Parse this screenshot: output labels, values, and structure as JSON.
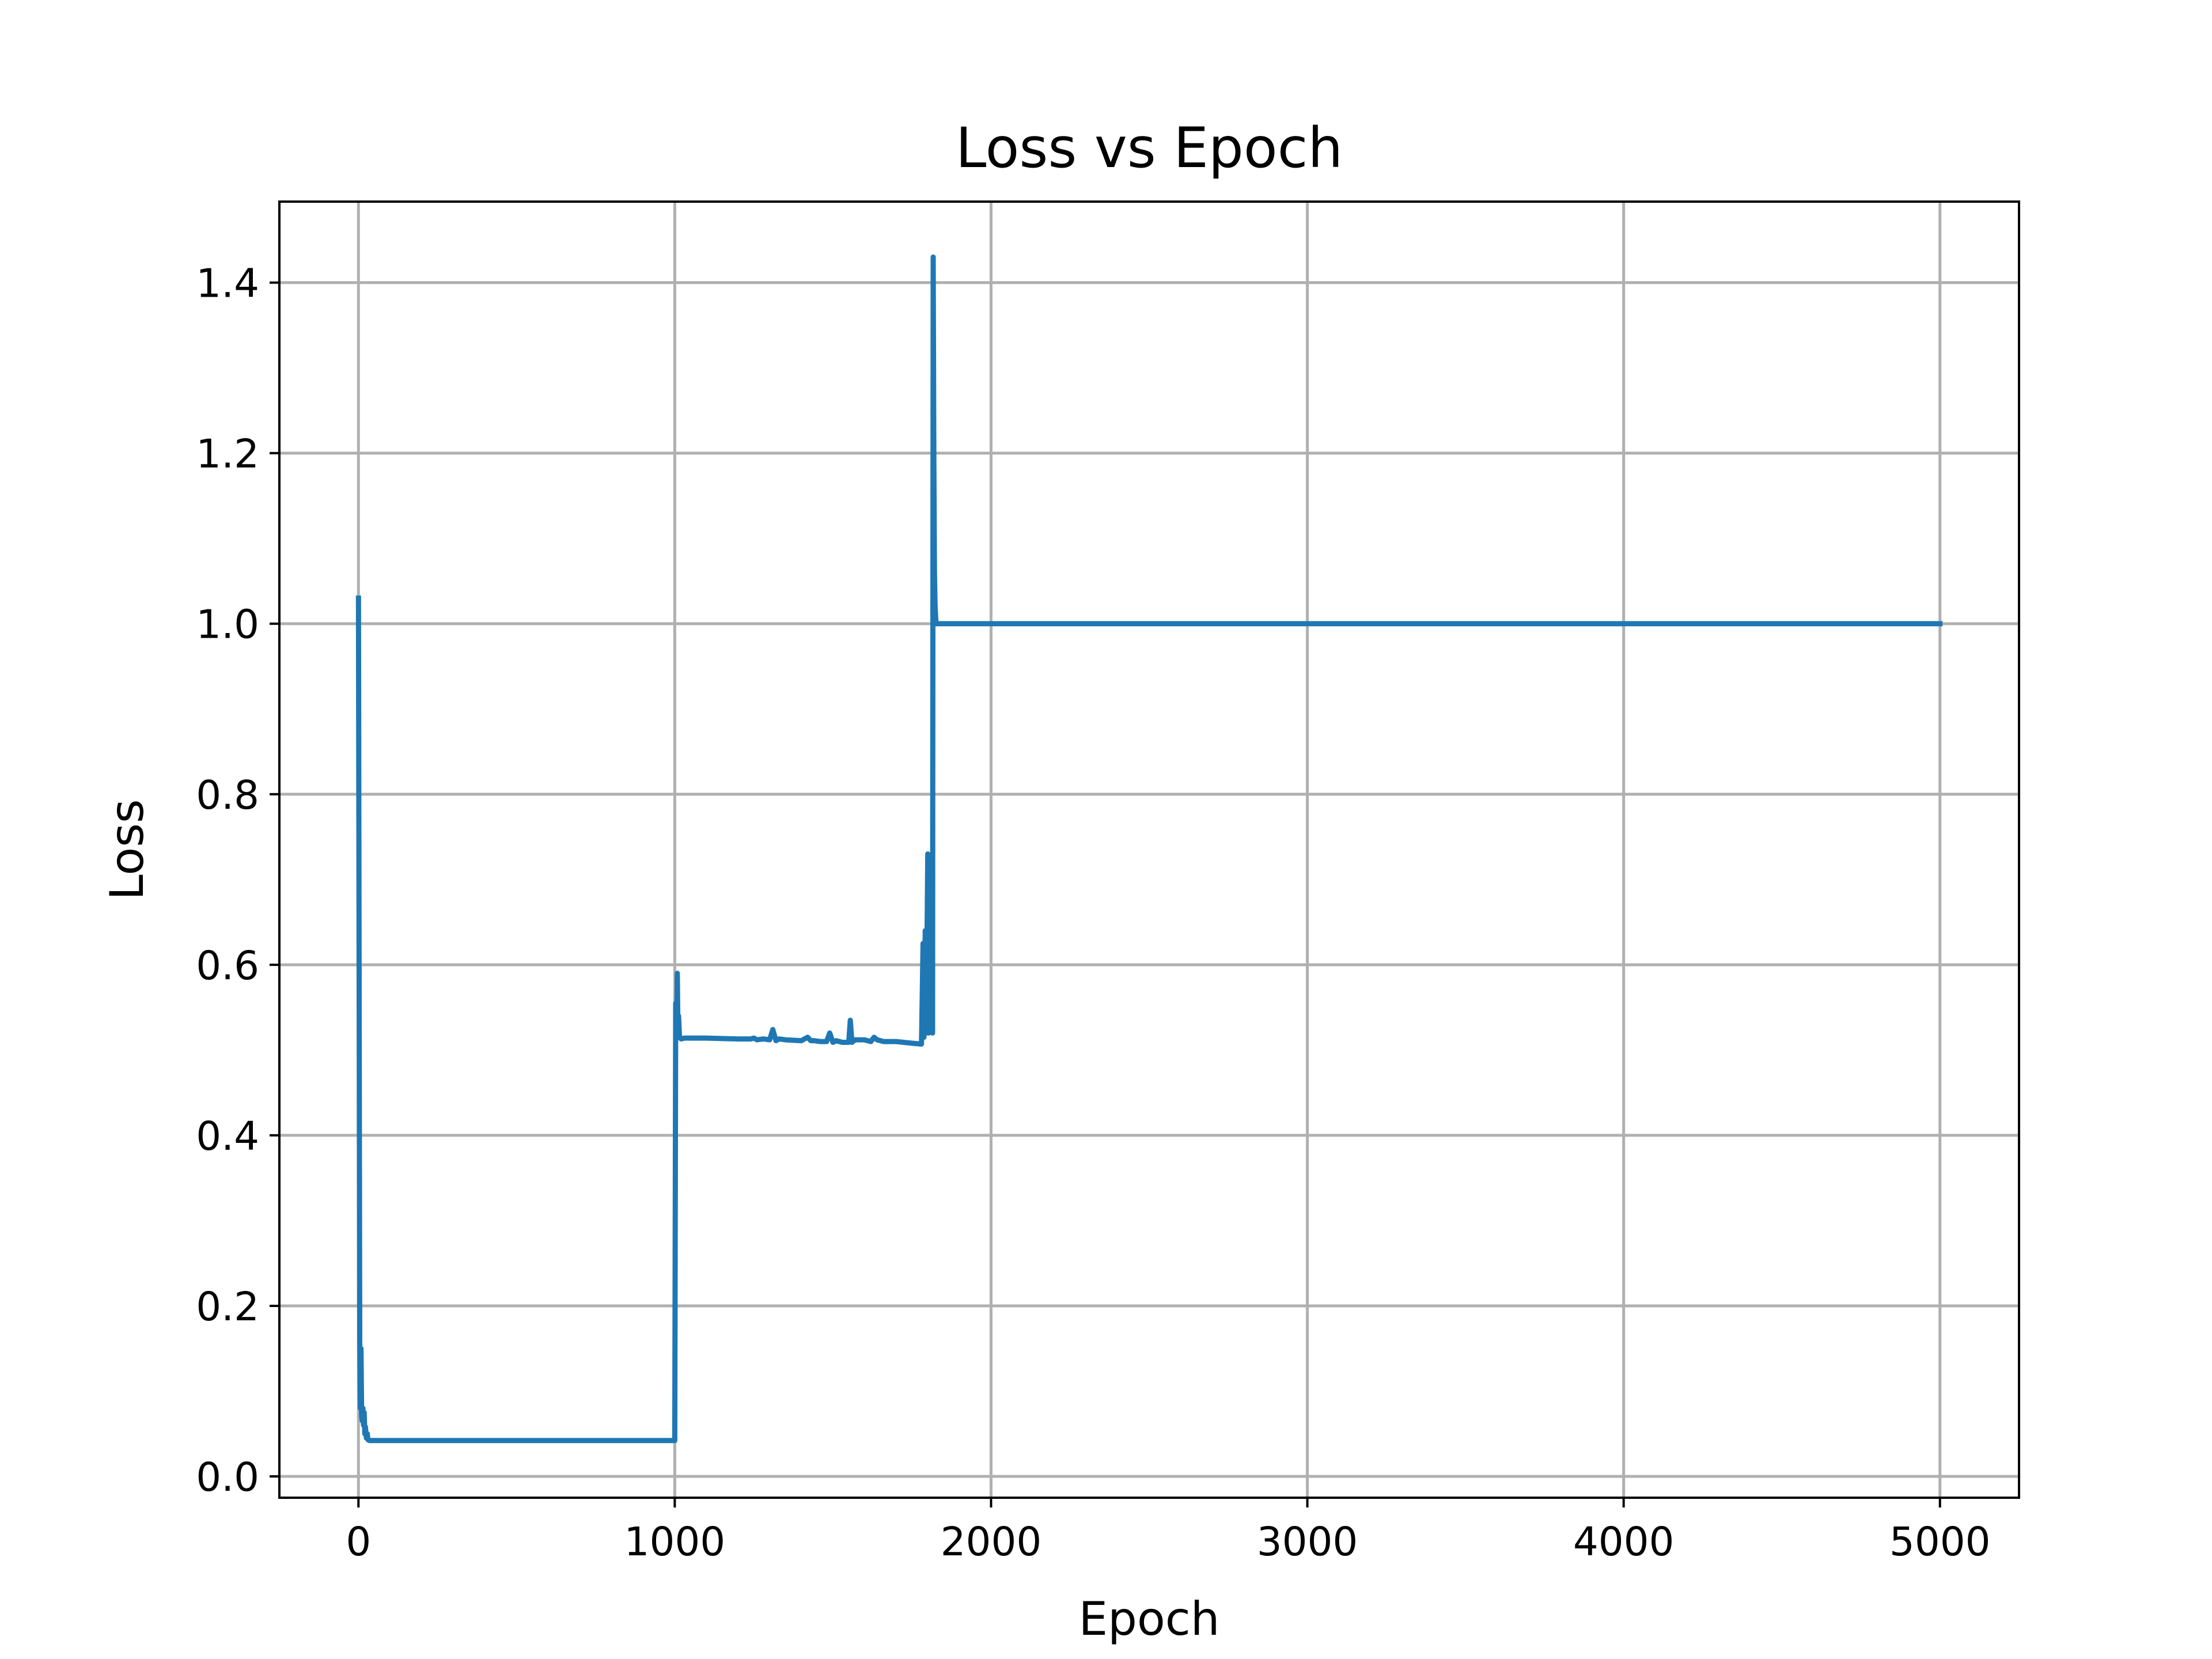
{
  "chart_data": {
    "type": "line",
    "title": "Loss vs Epoch",
    "xlabel": "Epoch",
    "ylabel": "Loss",
    "xlim": [
      -250,
      5250
    ],
    "ylim": [
      -0.025,
      1.495
    ],
    "xticks": [
      0,
      1000,
      2000,
      3000,
      4000,
      5000
    ],
    "xtick_labels": [
      "0",
      "1000",
      "2000",
      "3000",
      "4000",
      "5000"
    ],
    "yticks": [
      0.0,
      0.2,
      0.4,
      0.6,
      0.8,
      1.0,
      1.2,
      1.4
    ],
    "ytick_labels": [
      "0.0",
      "0.2",
      "0.4",
      "0.6",
      "0.8",
      "1.0",
      "1.2",
      "1.4"
    ],
    "grid": true,
    "colors": {
      "series": "#1f77b4",
      "grid": "#b0b0b0",
      "axes": "#000000"
    },
    "series": [
      {
        "x": [
          0,
          2,
          4,
          6,
          8,
          10,
          12,
          14,
          16,
          18,
          20,
          22,
          25,
          28,
          30,
          35,
          40,
          50,
          60,
          100,
          200,
          400,
          600,
          800,
          998,
          1000,
          1003,
          1006,
          1008,
          1010,
          1012,
          1015,
          1020,
          1030,
          1050,
          1100,
          1200,
          1240,
          1250,
          1260,
          1280,
          1300,
          1310,
          1320,
          1330,
          1350,
          1400,
          1420,
          1430,
          1440,
          1460,
          1480,
          1490,
          1500,
          1510,
          1530,
          1550,
          1555,
          1560,
          1570,
          1600,
          1620,
          1630,
          1640,
          1660,
          1700,
          1750,
          1780,
          1785,
          1788,
          1792,
          1795,
          1800,
          1803,
          1806,
          1809,
          1811,
          1813,
          1815,
          1817,
          1819,
          1821,
          1823,
          1826,
          1830,
          1840,
          1900,
          2000,
          3000,
          4000,
          5000
        ],
        "y": [
          1.03,
          0.6,
          0.16,
          0.08,
          0.15,
          0.07,
          0.065,
          0.08,
          0.06,
          0.075,
          0.05,
          0.058,
          0.045,
          0.05,
          0.043,
          0.042,
          0.042,
          0.042,
          0.042,
          0.042,
          0.042,
          0.042,
          0.042,
          0.042,
          0.042,
          0.042,
          0.555,
          0.52,
          0.59,
          0.52,
          0.54,
          0.515,
          0.513,
          0.514,
          0.514,
          0.514,
          0.513,
          0.513,
          0.514,
          0.512,
          0.513,
          0.512,
          0.524,
          0.511,
          0.513,
          0.512,
          0.511,
          0.515,
          0.511,
          0.511,
          0.51,
          0.51,
          0.52,
          0.509,
          0.511,
          0.509,
          0.509,
          0.535,
          0.509,
          0.512,
          0.512,
          0.51,
          0.515,
          0.512,
          0.51,
          0.51,
          0.508,
          0.507,
          0.625,
          0.515,
          0.64,
          0.52,
          0.73,
          0.52,
          0.6,
          0.525,
          0.62,
          0.53,
          0.52,
          1.43,
          1.2,
          1.06,
          1.02,
          1.0,
          1.0,
          1.0,
          1.0,
          1.0,
          1.0,
          1.0,
          1.0
        ]
      }
    ]
  }
}
